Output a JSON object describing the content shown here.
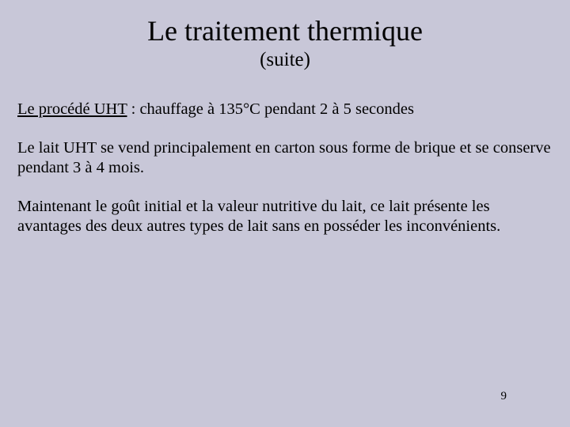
{
  "background_color": "#c8c7d8",
  "text_color": "#000000",
  "font_family": "Times New Roman",
  "title": {
    "text": "Le traitement thermique",
    "font_size": 36
  },
  "subtitle": {
    "text": "(suite)",
    "font_size": 25
  },
  "body": {
    "font_size": 20.5,
    "paragraphs": [
      {
        "lead_underlined": "Le procédé UHT",
        "rest": " : chauffage à 135°C pendant 2 à 5 secondes"
      },
      {
        "text": "Le lait UHT se vend principalement en carton sous forme de brique et se conserve pendant 3 à 4 mois."
      },
      {
        "text": "Maintenant le goût initial et la valeur nutritive du lait, ce lait présente les avantages des deux autres types de lait sans en posséder les inconvénients."
      }
    ]
  },
  "page_number": "9"
}
